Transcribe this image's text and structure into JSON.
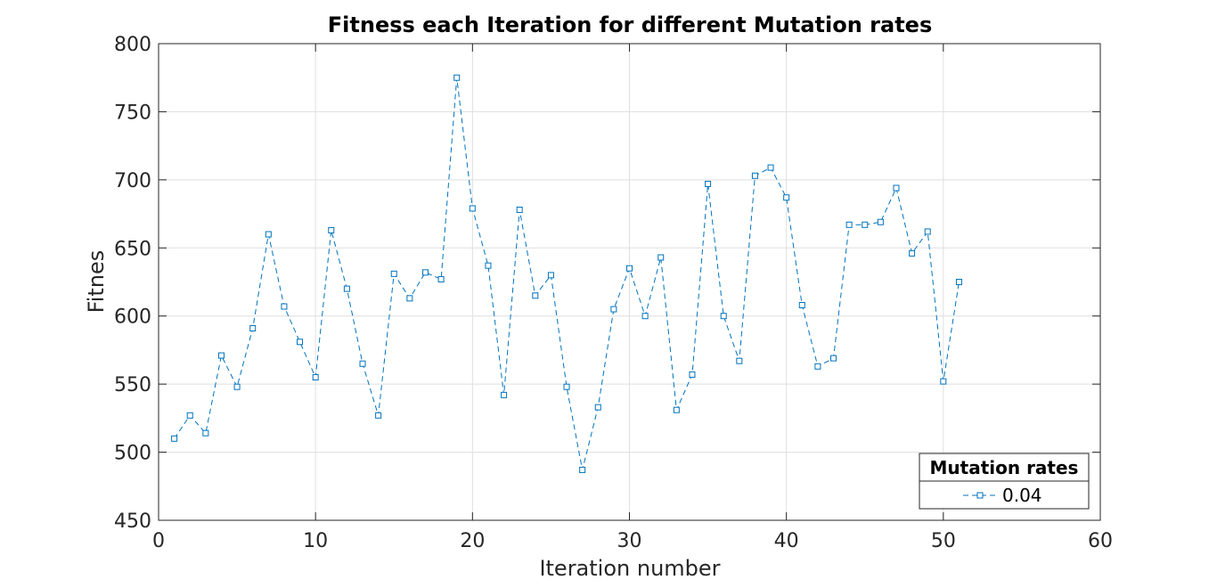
{
  "chart_data": {
    "type": "line",
    "title": "Fitness each Iteration for different Mutation rates",
    "xlabel": "Iteration number",
    "ylabel": "Fitnes",
    "xlim": [
      0,
      60
    ],
    "ylim": [
      450,
      800
    ],
    "xticks": [
      0,
      10,
      20,
      30,
      40,
      50,
      60
    ],
    "yticks": [
      450,
      500,
      550,
      600,
      650,
      700,
      750,
      800
    ],
    "grid": true,
    "legend": {
      "title": "Mutation rates",
      "placement": "bottom-right"
    },
    "series": [
      {
        "name": "0.04",
        "color": "#0072BD",
        "line_style": "dashed",
        "marker": "square",
        "x": [
          1,
          2,
          3,
          4,
          5,
          6,
          7,
          8,
          9,
          10,
          11,
          12,
          13,
          14,
          15,
          16,
          17,
          18,
          19,
          20,
          21,
          22,
          23,
          24,
          25,
          26,
          27,
          28,
          29,
          30,
          31,
          32,
          33,
          34,
          35,
          36,
          37,
          38,
          39,
          40,
          41,
          42,
          43,
          44,
          45,
          46,
          47,
          48,
          49,
          50,
          51
        ],
        "y": [
          510,
          527,
          514,
          571,
          548,
          591,
          660,
          607,
          581,
          555,
          663,
          620,
          565,
          527,
          631,
          613,
          632,
          627,
          775,
          679,
          637,
          542,
          678,
          615,
          630,
          548,
          487,
          533,
          605,
          635,
          600,
          643,
          531,
          557,
          697,
          600,
          567,
          703,
          709,
          687,
          608,
          563,
          569,
          667,
          667,
          669,
          694,
          646,
          662,
          552,
          625
        ]
      }
    ]
  }
}
